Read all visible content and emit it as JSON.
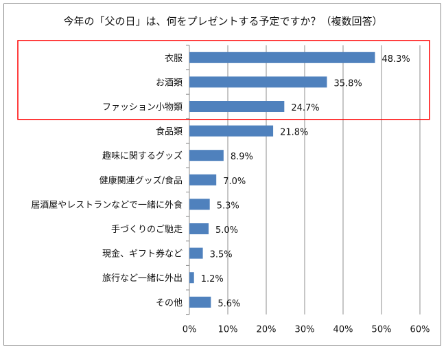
{
  "chart_data": {
    "type": "bar",
    "orientation": "horizontal",
    "title": "今年の「父の日」は、何をプレゼントする予定ですか？（複数回答）",
    "categories": [
      "衣服",
      "お酒類",
      "ファッション小物類",
      "食品類",
      "趣味に関するグッズ",
      "健康関連グッズ/食品",
      "居酒屋やレストランなどで一緒に外食",
      "手づくりのご馳走",
      "現金、ギフト券など",
      "旅行など一緒に外出",
      "その他"
    ],
    "values": [
      48.3,
      35.8,
      24.7,
      21.8,
      8.9,
      7.0,
      5.3,
      5.0,
      3.5,
      1.2,
      5.6
    ],
    "value_labels": [
      "48.3%",
      "35.8%",
      "24.7%",
      "21.8%",
      "8.9%",
      "7.0%",
      "5.3%",
      "5.0%",
      "3.5%",
      "1.2%",
      "5.6%"
    ],
    "xlim": [
      0,
      60
    ],
    "x_ticks": [
      "0%",
      "10%",
      "20%",
      "30%",
      "40%",
      "50%",
      "60%"
    ],
    "grid": true,
    "bar_color": "#4f81bd",
    "highlight_color": "#ff0000",
    "highlighted_categories": [
      "衣服",
      "お酒類",
      "ファッション小物類"
    ]
  }
}
